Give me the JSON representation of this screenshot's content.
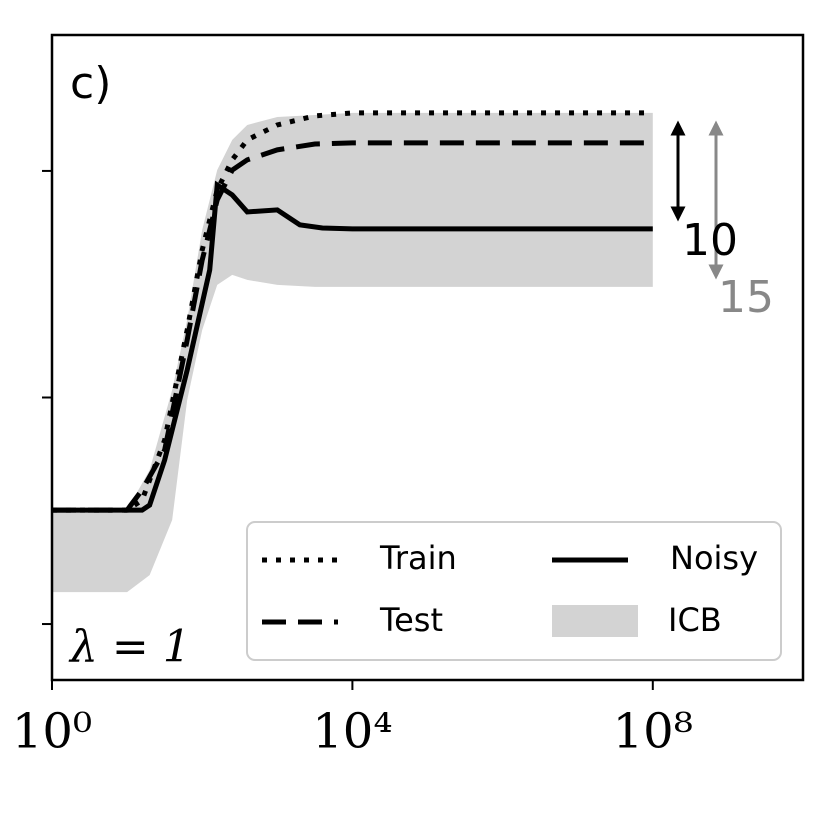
{
  "chart_data": {
    "type": "line",
    "panel_label": "c)",
    "annotation": "λ = 1",
    "xlog": true,
    "xlim": [
      1,
      10000000000
    ],
    "ylim": [
      -0.247,
      2.6
    ],
    "xticks": [
      {
        "value": 1,
        "label": "10⁰"
      },
      {
        "value": 10000,
        "label": "10⁴"
      },
      {
        "value": 100000000,
        "label": "10⁸"
      }
    ],
    "yticks": [
      0,
      1,
      2
    ],
    "series": [
      {
        "name": "Train",
        "color": "#000000",
        "style": "dotted",
        "x": [
          1,
          10,
          15.85,
          31.62,
          63.1,
          100,
          158.5,
          251.2,
          398.1,
          1000,
          3162,
          10000,
          100000000
        ],
        "values": [
          0.503,
          0.503,
          0.547,
          0.812,
          1.298,
          1.651,
          1.916,
          2.049,
          2.137,
          2.203,
          2.243,
          2.256,
          2.256
        ]
      },
      {
        "name": "Test",
        "color": "#000000",
        "style": "dashed",
        "x": [
          1,
          10,
          15.85,
          31.62,
          63.1,
          100,
          158.5,
          251.2,
          398.1,
          1000,
          3162,
          10000,
          100000000
        ],
        "values": [
          0.503,
          0.503,
          0.592,
          0.768,
          1.254,
          1.607,
          1.872,
          2.004,
          2.049,
          2.093,
          2.119,
          2.124,
          2.124
        ]
      },
      {
        "name": "Noisy",
        "color": "#000000",
        "style": "solid",
        "x": [
          1,
          15.85,
          19.95,
          31.62,
          63.1,
          125.9,
          158.5,
          251.2,
          398.1,
          1000,
          1995,
          3981,
          10000,
          100000000
        ],
        "values": [
          0.503,
          0.503,
          0.525,
          0.724,
          1.121,
          1.563,
          1.938,
          1.894,
          1.819,
          1.828,
          1.762,
          1.748,
          1.744,
          1.744
        ]
      }
    ],
    "band": {
      "name": "ICB",
      "color": "#d3d3d3",
      "x": [
        1,
        10,
        19.95,
        39.81,
        63.1,
        100,
        158.5,
        251.2,
        398.1,
        1000,
        3162,
        10000,
        100000000
      ],
      "lower": [
        0.141,
        0.141,
        0.216,
        0.459,
        0.989,
        1.298,
        1.497,
        1.541,
        1.519,
        1.497,
        1.488,
        1.488,
        1.488
      ],
      "upper": [
        0.503,
        0.503,
        0.68,
        1.033,
        1.342,
        1.74,
        2.004,
        2.137,
        2.203,
        2.238,
        2.247,
        2.256,
        2.256
      ]
    },
    "gap_labels": [
      {
        "text": "10",
        "color": "#000000"
      },
      {
        "text": "15",
        "color": "#888888"
      }
    ]
  }
}
